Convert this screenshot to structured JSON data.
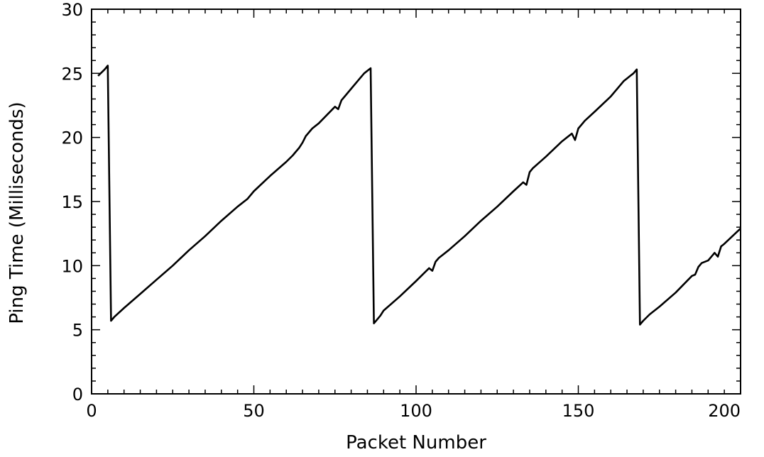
{
  "chart_data": {
    "type": "line",
    "title": "",
    "xlabel": "Packet Number",
    "ylabel": "Ping Time (Milliseconds)",
    "xlim": [
      0,
      200
    ],
    "ylim": [
      0,
      30
    ],
    "xticks": [
      0,
      50,
      100,
      150,
      200
    ],
    "yticks": [
      0,
      5,
      10,
      15,
      20,
      25,
      30
    ],
    "grid": false,
    "legend": "none",
    "series": [
      {
        "color": "#000000",
        "x": [
          2,
          4,
          5,
          6,
          7,
          10,
          15,
          20,
          25,
          30,
          35,
          40,
          45,
          48,
          50,
          55,
          60,
          62,
          63,
          64,
          65,
          66,
          68,
          70,
          75,
          76,
          77,
          78,
          80,
          82,
          84,
          86,
          87,
          88,
          89,
          90,
          95,
          100,
          104,
          105,
          106,
          107,
          110,
          115,
          120,
          125,
          130,
          133,
          134,
          135,
          136,
          140,
          145,
          148,
          149,
          150,
          151,
          152,
          155,
          160,
          164,
          165,
          166,
          167,
          168,
          169,
          170,
          172,
          175,
          180,
          185,
          186,
          187,
          188,
          190,
          191,
          192,
          193,
          194,
          195,
          200
        ],
        "y": [
          24.8,
          25.3,
          25.6,
          5.7,
          6.0,
          6.7,
          7.8,
          8.9,
          10.0,
          11.2,
          12.3,
          13.5,
          14.6,
          15.2,
          15.8,
          17.0,
          18.1,
          18.6,
          18.9,
          19.2,
          19.6,
          20.1,
          20.7,
          21.1,
          22.4,
          22.2,
          22.9,
          23.2,
          23.8,
          24.4,
          25.0,
          25.4,
          5.5,
          5.8,
          6.1,
          6.5,
          7.6,
          8.8,
          9.8,
          9.6,
          10.3,
          10.6,
          11.2,
          12.3,
          13.5,
          14.6,
          15.8,
          16.5,
          16.3,
          17.3,
          17.6,
          18.5,
          19.7,
          20.3,
          19.8,
          20.7,
          21.0,
          21.3,
          22.0,
          23.2,
          24.4,
          24.6,
          24.8,
          25.0,
          25.3,
          5.4,
          5.7,
          6.2,
          6.8,
          7.9,
          9.2,
          9.3,
          9.9,
          10.2,
          10.4,
          10.7,
          11.0,
          10.7,
          11.5,
          11.7,
          12.9
        ]
      }
    ]
  }
}
